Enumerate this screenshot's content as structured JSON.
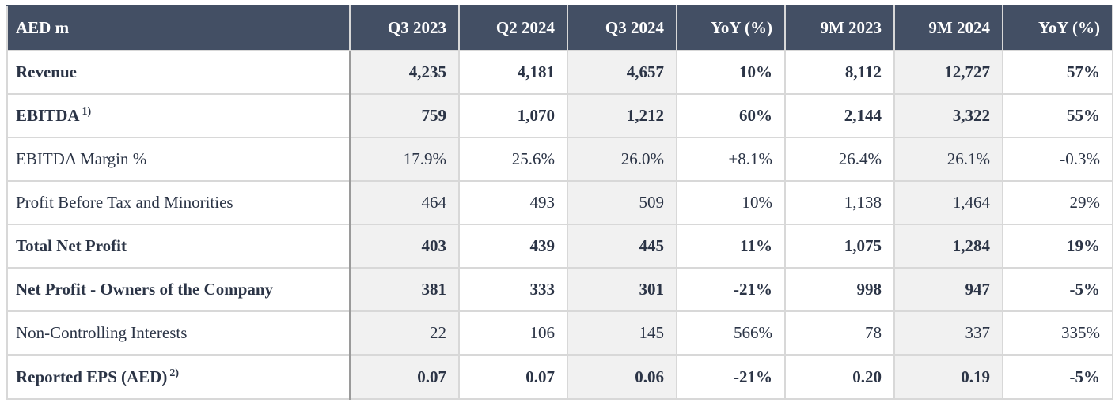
{
  "table": {
    "columns": [
      "AED m",
      "Q3 2023",
      "Q2 2024",
      "Q3 2024",
      "YoY (%)",
      "9M 2023",
      "9M 2024",
      "YoY (%)"
    ],
    "rows": [
      {
        "label": "Revenue",
        "note": "",
        "cells": [
          "4,235",
          "4,181",
          "4,657",
          "10%",
          "8,112",
          "12,727",
          "57%"
        ]
      },
      {
        "label": "EBITDA",
        "note": "1)",
        "cells": [
          "759",
          "1,070",
          "1,212",
          "60%",
          "2,144",
          "3,322",
          "55%"
        ]
      },
      {
        "label": "EBITDA Margin %",
        "note": "",
        "cells": [
          "17.9%",
          "25.6%",
          "26.0%",
          "+8.1%",
          "26.4%",
          "26.1%",
          "-0.3%"
        ]
      },
      {
        "label": "Profit Before Tax and Minorities",
        "note": "",
        "cells": [
          "464",
          "493",
          "509",
          "10%",
          "1,138",
          "1,464",
          "29%"
        ]
      },
      {
        "label": "Total Net Profit",
        "note": "",
        "cells": [
          "403",
          "439",
          "445",
          "11%",
          "1,075",
          "1,284",
          "19%"
        ]
      },
      {
        "label": "Net Profit - Owners of the Company",
        "note": "",
        "cells": [
          "381",
          "333",
          "301",
          "-21%",
          "998",
          "947",
          "-5%"
        ]
      },
      {
        "label": "Non-Controlling Interests",
        "note": "",
        "cells": [
          "22",
          "106",
          "145",
          "566%",
          "78",
          "337",
          "335%"
        ]
      },
      {
        "label": "Reported EPS (AED)",
        "note": "2)",
        "cells": [
          "0.07",
          "0.07",
          "0.06",
          "-21%",
          "0.20",
          "0.19",
          "-5%"
        ]
      }
    ]
  },
  "colors": {
    "header_bg": "#434f64",
    "header_text": "#ffffff",
    "body_text": "#2b3446",
    "shaded_cell": "#f1f1f1"
  }
}
